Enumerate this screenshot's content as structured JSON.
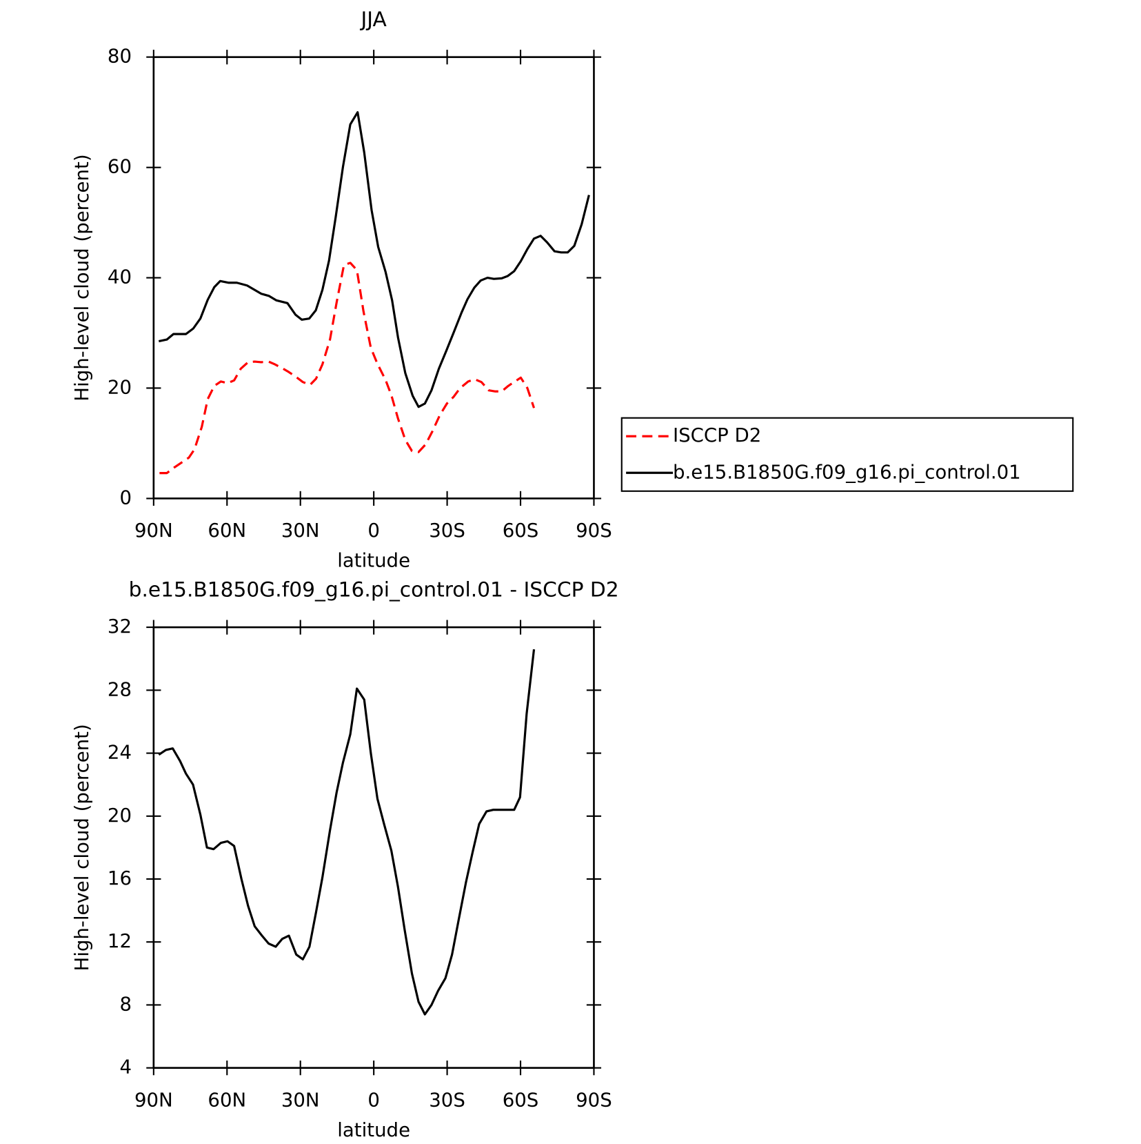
{
  "chart_data": [
    {
      "type": "line",
      "title": "JJA",
      "ylabel": "High-level cloud (percent)",
      "xlabel": "latitude",
      "xlim": [
        90,
        -90
      ],
      "xticks": [
        {
          "value": 90,
          "label": "90N"
        },
        {
          "value": 60,
          "label": "60N"
        },
        {
          "value": 30,
          "label": "30N"
        },
        0,
        {
          "value": -30,
          "label": "30S"
        },
        {
          "value": -60,
          "label": "60S"
        },
        {
          "value": -90,
          "label": "90S"
        }
      ],
      "ylim": [
        0,
        80
      ],
      "yticks": [
        0,
        20,
        40,
        60,
        80
      ],
      "legend": "right",
      "series": [
        {
          "name": "ISCCP D2",
          "color": "#ff0000",
          "linestyle": "dashed",
          "x": [
            87.6,
            84.6,
            81.6,
            78.6,
            75.6,
            73.3,
            70.3,
            67.9,
            65.2,
            62.5,
            59.8,
            57.1,
            54.4,
            51.4,
            48.7,
            46.0,
            43.0,
            40.4,
            37.4,
            34.7,
            31.7,
            29.0,
            26.0,
            23.6,
            21.0,
            17.9,
            15.2,
            12.2,
            9.6,
            6.9,
            4.2,
            1.2,
            -1.5,
            -4.8,
            -7.2,
            -9.9,
            -12.9,
            -15.6,
            -18.3,
            -21.2,
            -23.9,
            -26.9,
            -29.9,
            -32.6,
            -35.3,
            -38.6,
            -41.3,
            -44.0,
            -47.0,
            -49.7,
            -52.3,
            -55.0,
            -57.7,
            -60.1,
            -62.8,
            -65.5
          ],
          "values": [
            4.6,
            4.6,
            5.6,
            6.5,
            7.4,
            8.9,
            13,
            18,
            20.4,
            21.2,
            20.9,
            21.4,
            23.5,
            24.7,
            24.8,
            24.7,
            24.8,
            24.3,
            23.6,
            22.9,
            22,
            21.1,
            20.6,
            21.7,
            24.3,
            28.8,
            35.5,
            42.3,
            42.7,
            41.4,
            33.9,
            27.3,
            24.4,
            21.5,
            18.7,
            14.5,
            10.6,
            8.6,
            8.4,
            9.8,
            12.1,
            15,
            17.2,
            18.4,
            20,
            21.2,
            21.6,
            21.1,
            19.6,
            19.4,
            19.4,
            20.4,
            21.2,
            21.9,
            20,
            16.4
          ]
        },
        {
          "name": "b.e15.B1850G.f09_g16.pi_control.01",
          "color": "#000000",
          "linestyle": "solid",
          "x": [
            87.9,
            84.6,
            81.9,
            76.8,
            73.8,
            70.9,
            67.9,
            65.2,
            62.8,
            59.3,
            56.0,
            51.8,
            46.0,
            42.8,
            39.8,
            35.3,
            32.0,
            29.4,
            26.4,
            23.7,
            21.0,
            18.3,
            15.6,
            12.6,
            9.6,
            6.6,
            3.9,
            0.9,
            -1.8,
            -4.8,
            -7.5,
            -9.9,
            -12.9,
            -15.9,
            -18.3,
            -20.9,
            -23.6,
            -26.6,
            -29.6,
            -32.6,
            -35.9,
            -38.3,
            -41.1,
            -43.7,
            -46.5,
            -49.1,
            -52.3,
            -54.7,
            -57.4,
            -60.1,
            -62.8,
            -65.5,
            -68.2,
            -70.9,
            -73.9,
            -76.6,
            -79.3,
            -82.0,
            -85.0,
            -88.0
          ],
          "values": [
            28.5,
            28.8,
            29.8,
            29.8,
            30.8,
            32.6,
            36,
            38.3,
            39.4,
            39.1,
            39.1,
            38.6,
            37.1,
            36.7,
            35.9,
            35.4,
            33.3,
            32.4,
            32.6,
            34.1,
            37.8,
            43.1,
            50.9,
            60.1,
            67.8,
            70,
            62.7,
            52.3,
            45.6,
            41.1,
            35.9,
            29.2,
            22.7,
            18.6,
            16.6,
            17.2,
            19.6,
            23.5,
            26.7,
            30,
            33.7,
            36.1,
            38.2,
            39.5,
            40,
            39.8,
            39.9,
            40.3,
            41.2,
            43,
            45.2,
            47.1,
            47.6,
            46.4,
            44.8,
            44.6,
            44.6,
            45.8,
            49.7,
            55
          ]
        }
      ]
    },
    {
      "type": "line",
      "title": "b.e15.B1850G.f09_g16.pi_control.01 - ISCCP D2",
      "ylabel": "High-level cloud (percent)",
      "xlabel": "latitude",
      "xlim": [
        90,
        -90
      ],
      "xticks": [
        {
          "value": 90,
          "label": "90N"
        },
        {
          "value": 60,
          "label": "60N"
        },
        {
          "value": 30,
          "label": "30N"
        },
        0,
        {
          "value": -30,
          "label": "30S"
        },
        {
          "value": -60,
          "label": "60S"
        },
        {
          "value": -90,
          "label": "90S"
        }
      ],
      "ylim": [
        4,
        32
      ],
      "yticks": [
        4,
        8,
        12,
        16,
        20,
        24,
        28,
        32
      ],
      "series": [
        {
          "color": "#000000",
          "linestyle": "solid",
          "x": [
            87.9,
            85.0,
            82.2,
            79.2,
            76.8,
            73.9,
            70.9,
            68.2,
            65.5,
            62.5,
            59.8,
            57.1,
            54.1,
            51.4,
            48.7,
            45.7,
            43.0,
            40.1,
            37.4,
            34.7,
            31.7,
            29.0,
            26.3,
            23.6,
            21.0,
            17.9,
            15.2,
            12.6,
            9.6,
            6.9,
            3.9,
            1.2,
            -1.5,
            -4.2,
            -7.2,
            -9.9,
            -12.6,
            -15.6,
            -18.3,
            -20.9,
            -23.6,
            -26.3,
            -29.3,
            -32.0,
            -34.7,
            -37.7,
            -40.4,
            -43.1,
            -46.1,
            -48.8,
            -51.4,
            -54.4,
            -57.4,
            -59.8,
            -62.5,
            -65.5
          ],
          "values": [
            23.9,
            24.2,
            24.3,
            23.5,
            22.7,
            22,
            20.1,
            18,
            17.9,
            18.3,
            18.4,
            18.1,
            16,
            14.3,
            13,
            12.4,
            11.9,
            11.7,
            12.2,
            12.4,
            11.2,
            10.9,
            11.7,
            13.9,
            16.1,
            19.1,
            21.5,
            23.4,
            25.2,
            28.1,
            27.4,
            24,
            21.1,
            19.5,
            17.8,
            15.5,
            12.8,
            10,
            8.2,
            7.4,
            8,
            8.9,
            9.7,
            11.2,
            13.4,
            15.8,
            17.7,
            19.5,
            20.3,
            20.4,
            20.4,
            20.4,
            20.4,
            21.2,
            26.5,
            30.6
          ]
        }
      ]
    }
  ]
}
